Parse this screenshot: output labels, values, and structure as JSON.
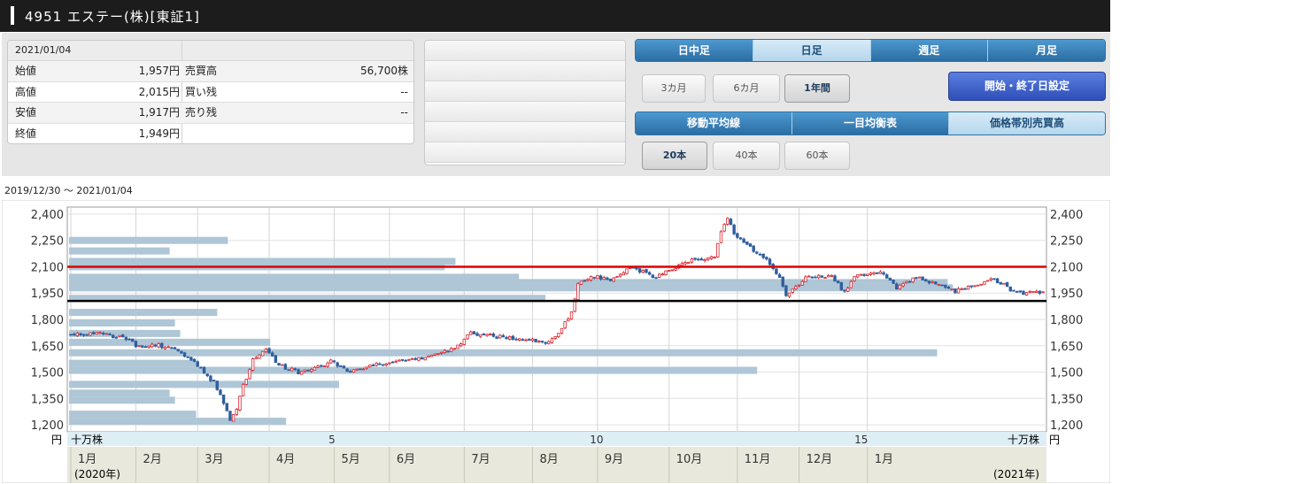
{
  "header": {
    "title": "4951 エステー(株)[東証1]"
  },
  "quote": {
    "date": "2021/01/04",
    "rows": [
      {
        "label1": "始値",
        "value1": "1,957円",
        "label2": "売買高",
        "value2": "56,700株"
      },
      {
        "label1": "高値",
        "value1": "2,015円",
        "label2": "買い残",
        "value2": "--"
      },
      {
        "label1": "安値",
        "value1": "1,917円",
        "label2": "売り残",
        "value2": "--"
      },
      {
        "label1": "終値",
        "value1": "1,949円",
        "label2": "",
        "value2": ""
      }
    ]
  },
  "controls": {
    "period_tabs": [
      "日中足",
      "日足",
      "週足",
      "月足"
    ],
    "period_selected": "日足",
    "span_buttons": [
      "3カ月",
      "6カ月",
      "1年間"
    ],
    "span_selected": "1年間",
    "date_setting_button": "開始・終了日設定",
    "indicator_tabs": [
      "移動平均線",
      "一目均衡表",
      "価格帯別売買高"
    ],
    "indicator_selected": "価格帯別売買高",
    "count_buttons": [
      "20本",
      "40本",
      "60本"
    ],
    "count_selected": "20本"
  },
  "range_label": "2019/12/30 〜 2021/01/04",
  "chart_data": {
    "type": "candlestick",
    "title": "",
    "ylim": [
      1160,
      2440
    ],
    "yticks": [
      "2,400",
      "2,250",
      "2,100",
      "1,950",
      "1,800",
      "1,650",
      "1,500",
      "1,350",
      "1,200"
    ],
    "ytick_values": [
      2400,
      2250,
      2100,
      1950,
      1800,
      1650,
      1500,
      1350,
      1200
    ],
    "y_unit_left": "円",
    "y_unit_right": "円",
    "volume_unit_left": "十万株",
    "volume_unit_right": "十万株",
    "volume_ticks": [
      "5",
      "10",
      "15"
    ],
    "volume_tick_values": [
      5,
      10,
      15
    ],
    "volume_max": 18.5,
    "month_labels": [
      "1月",
      "2月",
      "3月",
      "4月",
      "5月",
      "6月",
      "7月",
      "8月",
      "9月",
      "10月",
      "11月",
      "12月",
      "1月"
    ],
    "month_positions": [
      0,
      20,
      39,
      61,
      81,
      98,
      121,
      142,
      162,
      184,
      205,
      224,
      245
    ],
    "year_labels": [
      "(2020年)",
      "(2021年)"
    ],
    "horizontal_lines": [
      {
        "value": 2100,
        "color": "#e00000"
      },
      {
        "value": 1905,
        "color": "#000000"
      }
    ],
    "volume_profile": [
      {
        "price": 2250,
        "volume": 3
      },
      {
        "price": 2190,
        "volume": 1.9
      },
      {
        "price": 2130,
        "volume": 7.3
      },
      {
        "price": 2100,
        "volume": 7.1
      },
      {
        "price": 2040,
        "volume": 8.5
      },
      {
        "price": 2010,
        "volume": 16.6
      },
      {
        "price": 1980,
        "volume": 16.7
      },
      {
        "price": 1920,
        "volume": 9
      },
      {
        "price": 1840,
        "volume": 2.8
      },
      {
        "price": 1780,
        "volume": 2
      },
      {
        "price": 1720,
        "volume": 2.1
      },
      {
        "price": 1670,
        "volume": 3.8
      },
      {
        "price": 1610,
        "volume": 16.4
      },
      {
        "price": 1550,
        "volume": 2.4
      },
      {
        "price": 1510,
        "volume": 13
      },
      {
        "price": 1430,
        "volume": 5.1
      },
      {
        "price": 1380,
        "volume": 1.9
      },
      {
        "price": 1340,
        "volume": 2
      },
      {
        "price": 1260,
        "volume": 2.4
      },
      {
        "price": 1220,
        "volume": 4.1
      }
    ],
    "price_path": [
      [
        0,
        1720
      ],
      [
        10,
        1715
      ],
      [
        18,
        1690
      ],
      [
        20,
        1640
      ],
      [
        25,
        1655
      ],
      [
        32,
        1640
      ],
      [
        36,
        1580
      ],
      [
        40,
        1520
      ],
      [
        44,
        1440
      ],
      [
        47,
        1330
      ],
      [
        49,
        1220
      ],
      [
        51,
        1290
      ],
      [
        53,
        1420
      ],
      [
        56,
        1570
      ],
      [
        60,
        1640
      ],
      [
        64,
        1540
      ],
      [
        70,
        1500
      ],
      [
        75,
        1520
      ],
      [
        80,
        1560
      ],
      [
        86,
        1505
      ],
      [
        92,
        1540
      ],
      [
        100,
        1560
      ],
      [
        110,
        1590
      ],
      [
        118,
        1640
      ],
      [
        123,
        1720
      ],
      [
        132,
        1700
      ],
      [
        140,
        1690
      ],
      [
        146,
        1660
      ],
      [
        150,
        1730
      ],
      [
        154,
        1840
      ],
      [
        156,
        2000
      ],
      [
        160,
        2050
      ],
      [
        166,
        2020
      ],
      [
        172,
        2100
      ],
      [
        180,
        2040
      ],
      [
        186,
        2100
      ],
      [
        192,
        2140
      ],
      [
        198,
        2160
      ],
      [
        200,
        2300
      ],
      [
        202,
        2380
      ],
      [
        204,
        2290
      ],
      [
        210,
        2190
      ],
      [
        214,
        2140
      ],
      [
        218,
        2030
      ],
      [
        220,
        1940
      ],
      [
        226,
        2040
      ],
      [
        234,
        2050
      ],
      [
        238,
        1950
      ],
      [
        241,
        2040
      ],
      [
        246,
        2070
      ],
      [
        250,
        2060
      ],
      [
        254,
        1980
      ],
      [
        260,
        2040
      ],
      [
        266,
        2000
      ],
      [
        272,
        1960
      ],
      [
        276,
        1990
      ],
      [
        284,
        2030
      ],
      [
        290,
        1960
      ],
      [
        294,
        1950
      ],
      [
        299,
        1953
      ]
    ]
  }
}
